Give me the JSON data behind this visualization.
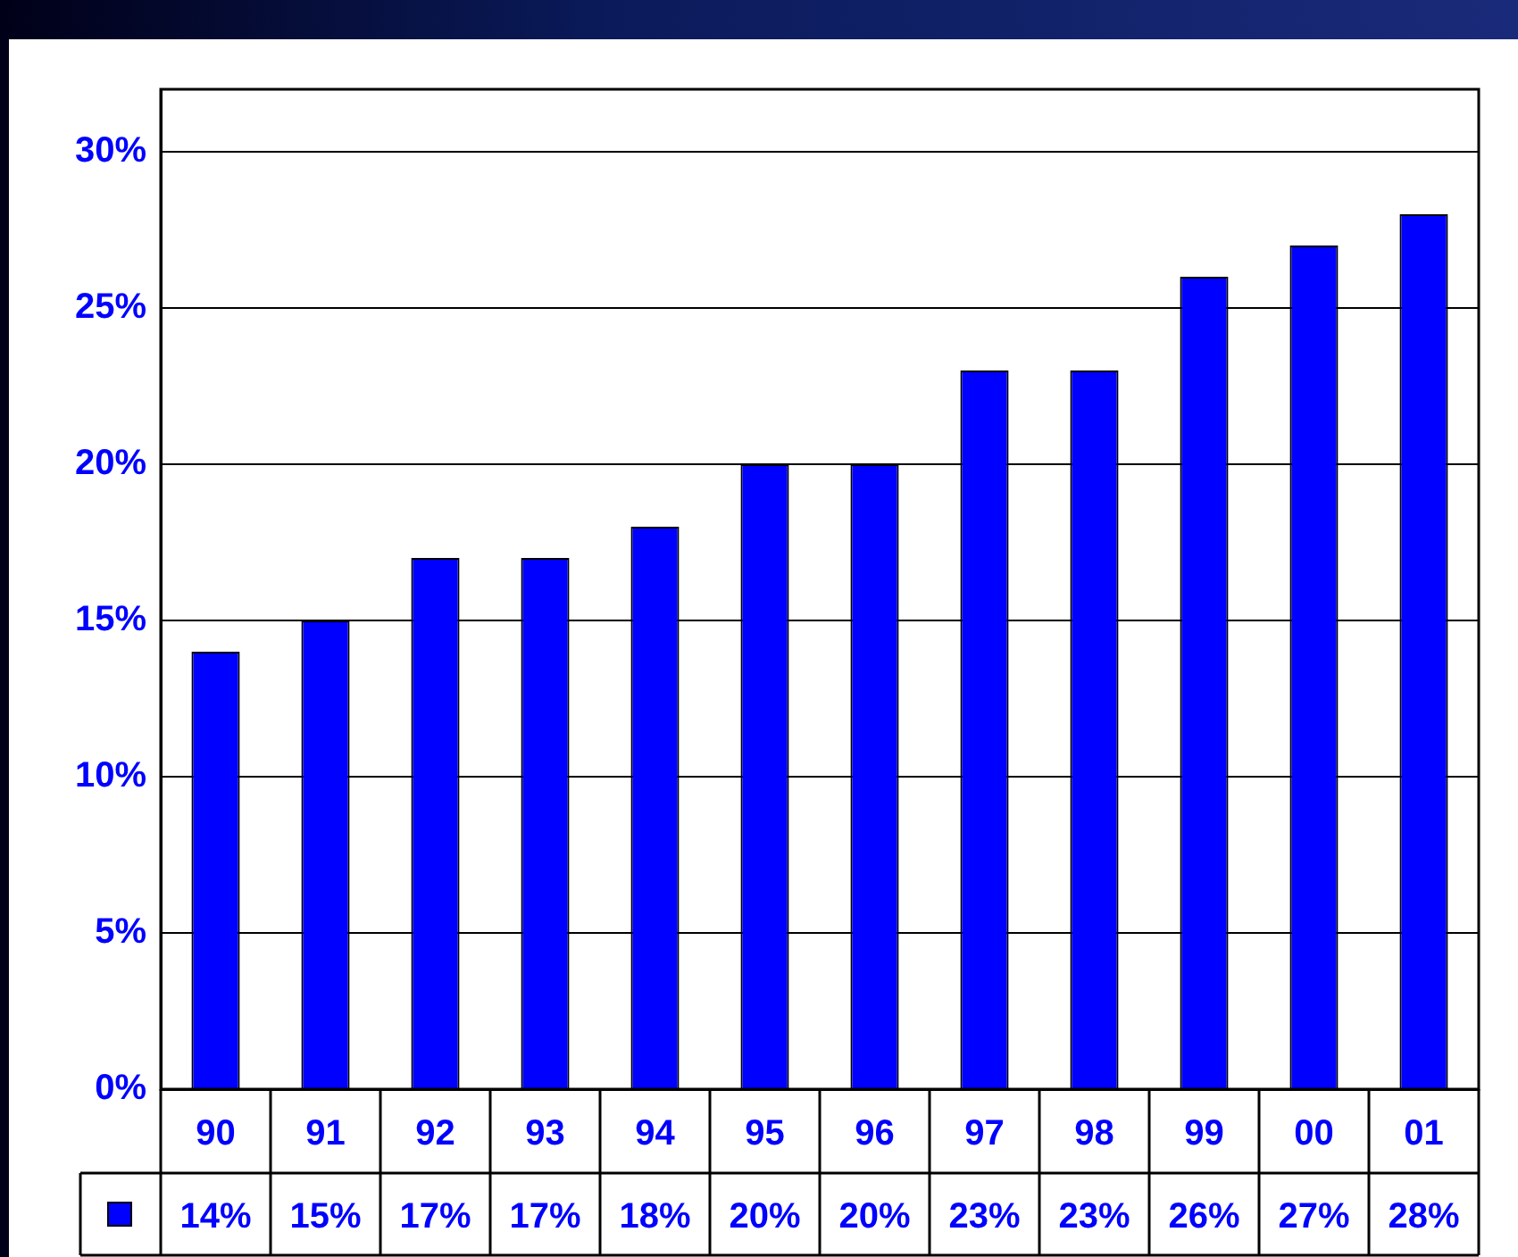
{
  "chart_data": {
    "type": "bar",
    "categories": [
      "90",
      "91",
      "92",
      "93",
      "94",
      "95",
      "96",
      "97",
      "98",
      "99",
      "00",
      "01"
    ],
    "values": [
      14,
      15,
      17,
      17,
      18,
      20,
      20,
      23,
      23,
      26,
      27,
      28
    ],
    "value_labels": [
      "14%",
      "15%",
      "17%",
      "17%",
      "18%",
      "20%",
      "20%",
      "23%",
      "23%",
      "26%",
      "27%",
      "28%"
    ],
    "color": "#0000ff",
    "ylim": [
      0,
      32
    ],
    "yticks": [
      {
        "value": 0,
        "label": "0%"
      },
      {
        "value": 5,
        "label": "5%"
      },
      {
        "value": 10,
        "label": "10%"
      },
      {
        "value": 15,
        "label": "15%"
      },
      {
        "value": 20,
        "label": "20%"
      },
      {
        "value": 25,
        "label": "25%"
      },
      {
        "value": 30,
        "label": "30%"
      }
    ],
    "grid": "y"
  }
}
